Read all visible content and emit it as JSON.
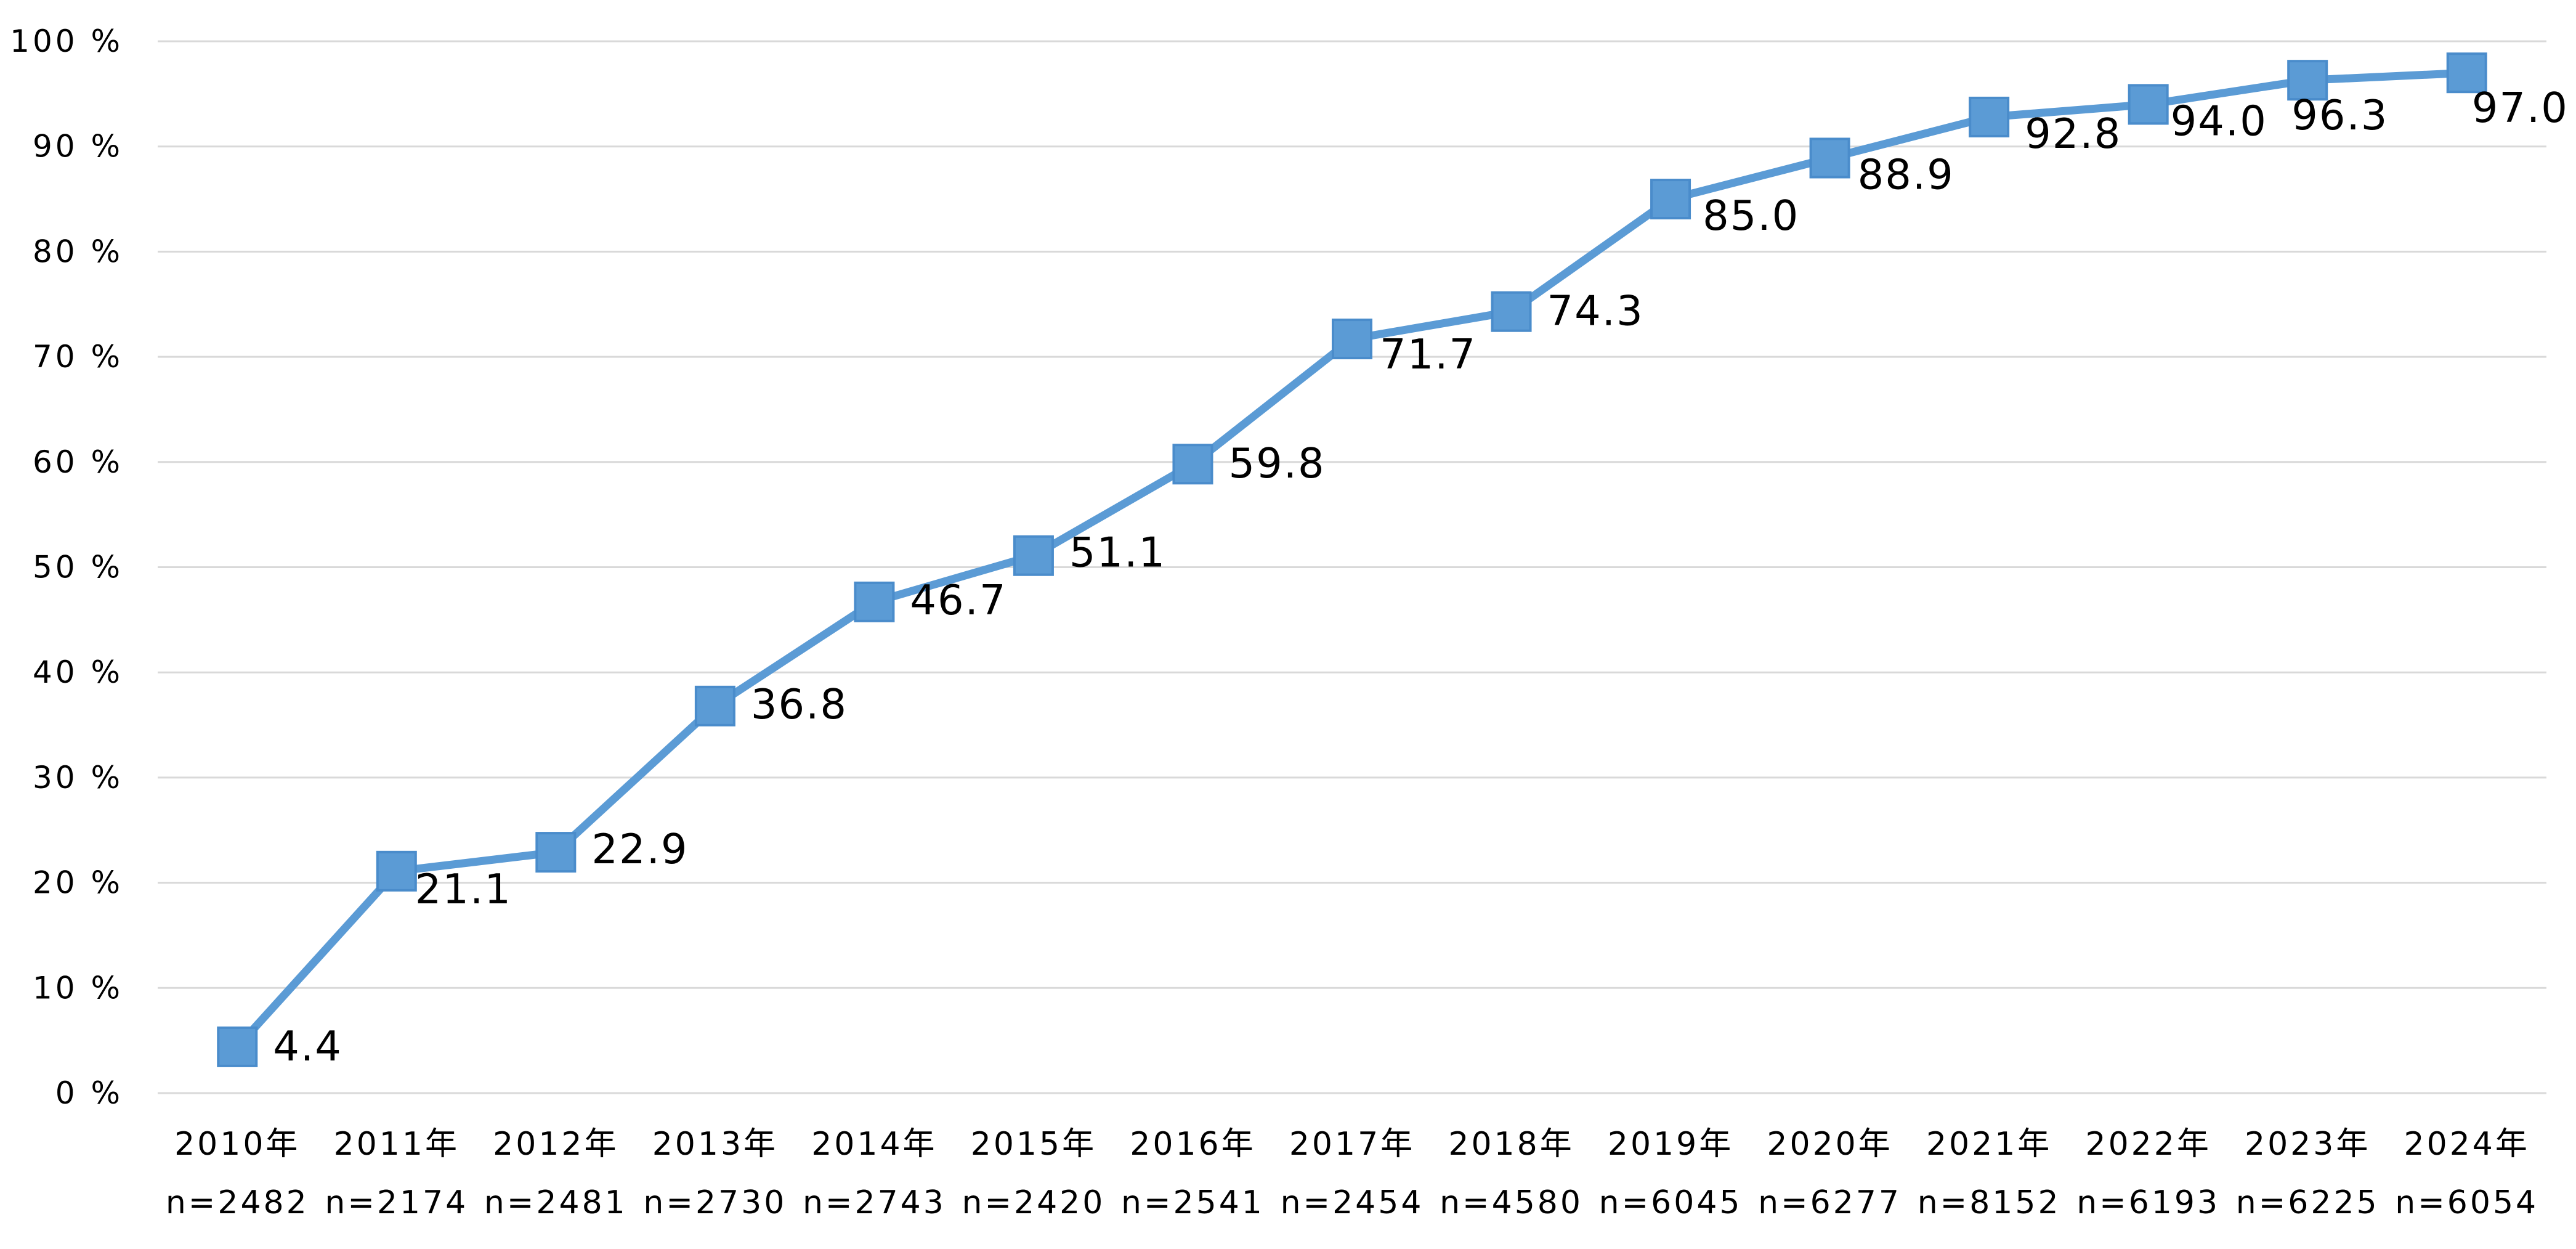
{
  "chart_data": {
    "type": "line",
    "title": "",
    "xlabel": "",
    "ylabel": "",
    "ylim": [
      0,
      100
    ],
    "y_tick_labels": [
      "0 %",
      "10 %",
      "20 %",
      "30 %",
      "40 %",
      "50 %",
      "60 %",
      "70 %",
      "80 %",
      "90 %",
      "100 %"
    ],
    "grid": true,
    "legend": "none",
    "categories": [
      {
        "year": "2010年",
        "n": "n=2482"
      },
      {
        "year": "2011年",
        "n": "n=2174"
      },
      {
        "year": "2012年",
        "n": "n=2481"
      },
      {
        "year": "2013年",
        "n": "n=2730"
      },
      {
        "year": "2014年",
        "n": "n=2743"
      },
      {
        "year": "2015年",
        "n": "n=2420"
      },
      {
        "year": "2016年",
        "n": "n=2541"
      },
      {
        "year": "2017年",
        "n": "n=2454"
      },
      {
        "year": "2018年",
        "n": "n=4580"
      },
      {
        "year": "2019年",
        "n": "n=6045"
      },
      {
        "year": "2020年",
        "n": "n=6277"
      },
      {
        "year": "2021年",
        "n": "n=8152"
      },
      {
        "year": "2022年",
        "n": "n=6193"
      },
      {
        "year": "2023年",
        "n": "n=6225"
      },
      {
        "year": "2024年",
        "n": "n=6054"
      }
    ],
    "series": [
      {
        "values": [
          4.4,
          21.1,
          22.9,
          36.8,
          46.7,
          51.1,
          59.8,
          71.7,
          74.3,
          85.0,
          88.9,
          92.8,
          94.0,
          96.3,
          97.0
        ],
        "value_labels": [
          "4.4",
          "21.1",
          "22.9",
          "36.8",
          "46.7",
          "51.1",
          "59.8",
          "71.7",
          "74.3",
          "85.0",
          "88.9",
          "92.8",
          "94.0",
          "96.3",
          "97.0"
        ],
        "color": "#5b9bd5",
        "marker": "square"
      }
    ]
  }
}
